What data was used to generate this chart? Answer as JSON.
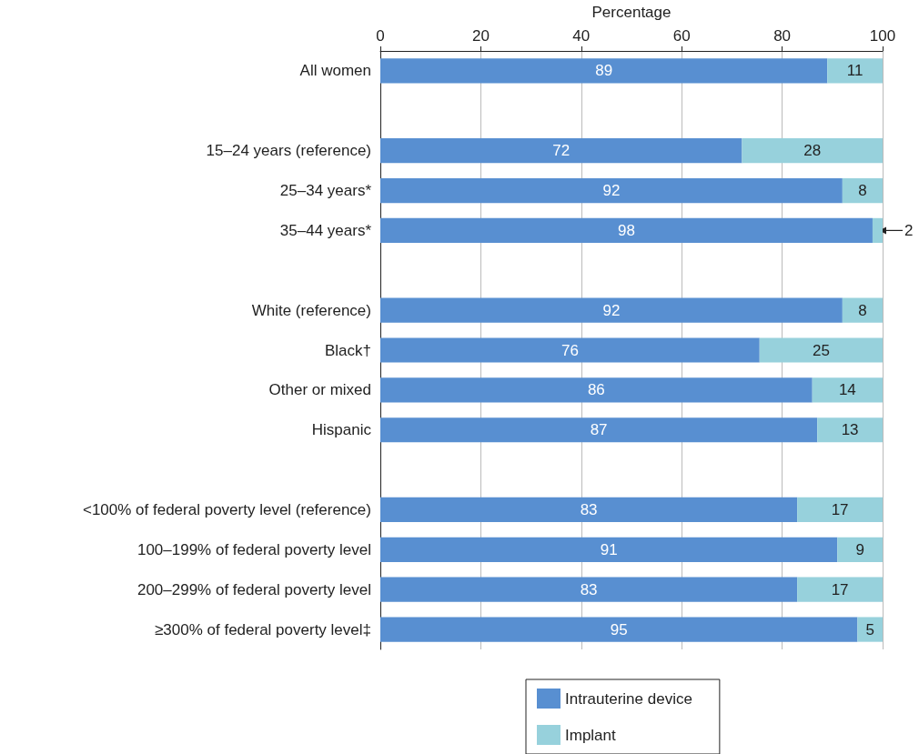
{
  "chart_data": {
    "type": "bar",
    "orientation": "horizontal",
    "stacked": true,
    "xlabel": "Percentage",
    "categories": [
      "All women",
      null,
      "15–24 years (reference)",
      "25–34 years*",
      "35–44 years*",
      null,
      "White (reference)",
      "Black†",
      "Other or mixed",
      "Hispanic",
      null,
      "<100% of federal poverty level (reference)",
      "100–199% of federal poverty level",
      "200–299% of federal poverty level",
      "≥300% of federal poverty level‡"
    ],
    "series": [
      {
        "name": "Intrauterine device",
        "color": "#588fd1",
        "values": [
          89,
          null,
          72,
          92,
          98,
          null,
          92,
          75.5,
          86,
          87,
          null,
          83,
          91,
          83,
          95
        ],
        "value_labels": [
          "89",
          null,
          "72",
          "92",
          "98",
          null,
          "92",
          "76",
          "86",
          "87",
          null,
          "83",
          "91",
          "83",
          "95"
        ]
      },
      {
        "name": "Implant",
        "color": "#97d1dc",
        "values": [
          11,
          null,
          28,
          8,
          2,
          null,
          8,
          24.5,
          14,
          13,
          null,
          17,
          9,
          17,
          5
        ],
        "value_labels": [
          "11",
          null,
          "28",
          "8",
          "2",
          null,
          "8",
          "25",
          "14",
          "13",
          null,
          "17",
          "9",
          "17",
          "5"
        ]
      }
    ],
    "xlim": [
      0,
      100
    ],
    "xticks": [
      0,
      20,
      40,
      60,
      80,
      100
    ],
    "grid": "x",
    "legend": "bottom"
  }
}
